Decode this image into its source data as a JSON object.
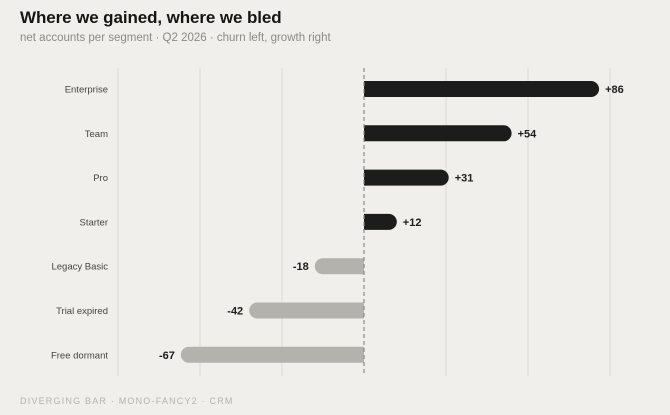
{
  "title": "Where we gained, where we bled",
  "subtitle": "net accounts per segment · Q2 2026 · churn left, growth right",
  "footer": "DIVERGING BAR · MONO-FANCY2 · CRM",
  "colors": {
    "background": "#f0efeb",
    "positive": "#1c1c1c",
    "negative": "#b3b2ad",
    "grid": "#dad9d4",
    "zero_line": "#8c8b87"
  },
  "chart_data": {
    "type": "bar",
    "orientation": "horizontal-diverging",
    "categories": [
      "Enterprise",
      "Team",
      "Pro",
      "Starter",
      "Legacy Basic",
      "Trial expired",
      "Free dormant"
    ],
    "values": [
      86,
      54,
      31,
      12,
      -18,
      -42,
      -67
    ],
    "value_labels": [
      "+86",
      "+54",
      "+31",
      "+12",
      "-18",
      "-42",
      "-67"
    ],
    "xlim": [
      -90,
      90
    ],
    "grid": true,
    "zero_line": "dashed"
  }
}
